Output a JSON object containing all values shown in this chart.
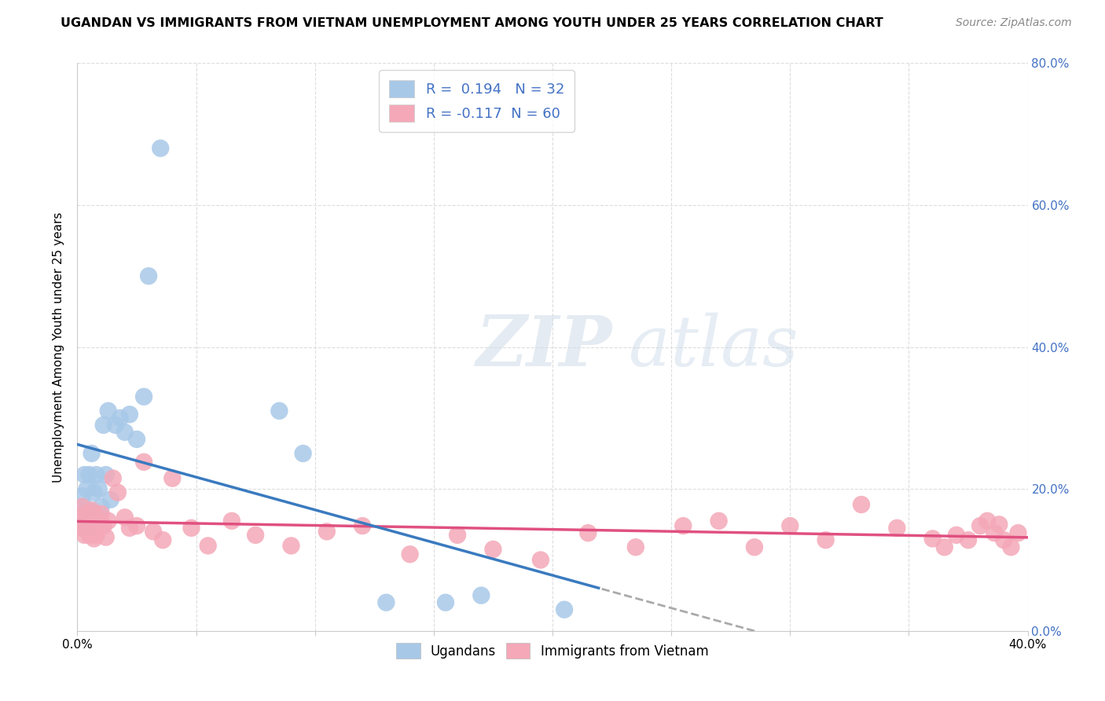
{
  "title": "UGANDAN VS IMMIGRANTS FROM VIETNAM UNEMPLOYMENT AMONG YOUTH UNDER 25 YEARS CORRELATION CHART",
  "source": "Source: ZipAtlas.com",
  "ylabel": "Unemployment Among Youth under 25 years",
  "xlim": [
    0.0,
    0.4
  ],
  "ylim": [
    0.0,
    0.8
  ],
  "ugandan_R": 0.194,
  "ugandan_N": 32,
  "vietnam_R": -0.117,
  "vietnam_N": 60,
  "blue_color": "#a8c8e8",
  "pink_color": "#f4a8b8",
  "blue_line_color": "#3a7abf",
  "pink_line_color": "#e05080",
  "gray_line_color": "#aaaaaa",
  "background_color": "#ffffff",
  "grid_color": "#dddddd",
  "watermark_zip": "ZIP",
  "watermark_atlas": "atlas",
  "right_axis_color": "#4472c4",
  "ugandan_x": [
    0.001,
    0.002,
    0.002,
    0.003,
    0.003,
    0.004,
    0.004,
    0.005,
    0.005,
    0.006,
    0.007,
    0.008,
    0.009,
    0.01,
    0.011,
    0.012,
    0.013,
    0.014,
    0.016,
    0.018,
    0.02,
    0.022,
    0.025,
    0.028,
    0.03,
    0.035,
    0.085,
    0.095,
    0.13,
    0.155,
    0.17,
    0.205
  ],
  "ugandan_y": [
    0.155,
    0.16,
    0.19,
    0.175,
    0.22,
    0.145,
    0.2,
    0.22,
    0.16,
    0.25,
    0.195,
    0.22,
    0.2,
    0.175,
    0.29,
    0.22,
    0.31,
    0.185,
    0.29,
    0.3,
    0.28,
    0.305,
    0.27,
    0.33,
    0.5,
    0.68,
    0.31,
    0.25,
    0.04,
    0.04,
    0.05,
    0.03
  ],
  "vietnam_x": [
    0.001,
    0.002,
    0.002,
    0.003,
    0.003,
    0.004,
    0.004,
    0.005,
    0.005,
    0.006,
    0.006,
    0.007,
    0.007,
    0.008,
    0.008,
    0.009,
    0.01,
    0.011,
    0.012,
    0.013,
    0.015,
    0.017,
    0.02,
    0.022,
    0.025,
    0.028,
    0.032,
    0.036,
    0.04,
    0.048,
    0.055,
    0.065,
    0.075,
    0.09,
    0.105,
    0.12,
    0.14,
    0.16,
    0.175,
    0.195,
    0.215,
    0.235,
    0.255,
    0.27,
    0.285,
    0.3,
    0.315,
    0.33,
    0.345,
    0.36,
    0.365,
    0.37,
    0.375,
    0.38,
    0.383,
    0.386,
    0.388,
    0.39,
    0.393,
    0.396
  ],
  "vietnam_y": [
    0.16,
    0.145,
    0.175,
    0.155,
    0.135,
    0.165,
    0.15,
    0.145,
    0.135,
    0.17,
    0.155,
    0.13,
    0.165,
    0.145,
    0.135,
    0.155,
    0.165,
    0.148,
    0.132,
    0.155,
    0.215,
    0.195,
    0.16,
    0.145,
    0.148,
    0.238,
    0.14,
    0.128,
    0.215,
    0.145,
    0.12,
    0.155,
    0.135,
    0.12,
    0.14,
    0.148,
    0.108,
    0.135,
    0.115,
    0.1,
    0.138,
    0.118,
    0.148,
    0.155,
    0.118,
    0.148,
    0.128,
    0.178,
    0.145,
    0.13,
    0.118,
    0.135,
    0.128,
    0.148,
    0.155,
    0.138,
    0.15,
    0.128,
    0.118,
    0.138
  ]
}
